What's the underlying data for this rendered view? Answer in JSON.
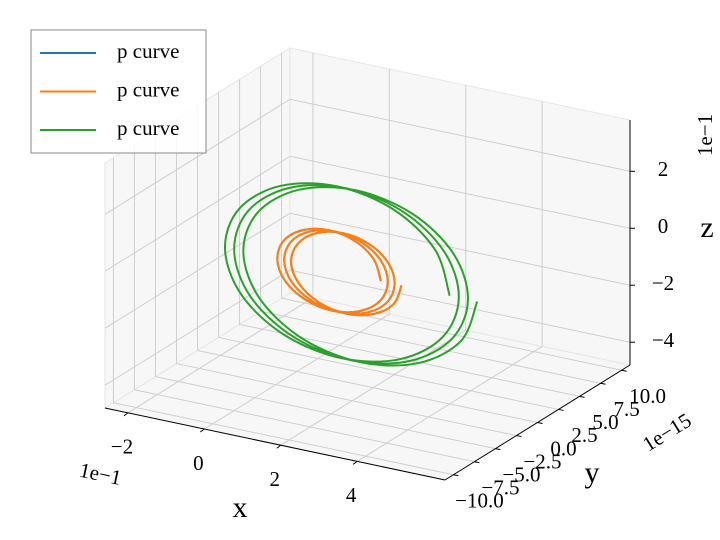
{
  "chart_data": {
    "type": "line3d",
    "series": [
      {
        "name": "p curve",
        "color": "#1f77b4",
        "x": [
          0.22,
          0.202,
          0.153,
          0.0845,
          0.016,
          -0.034,
          -0.051,
          -0.031,
          0.022,
          0.0935,
          0.165,
          0.218,
          0.238,
          0.221,
          0.171,
          0.1025,
          0.034,
          -0.016,
          -0.033,
          -0.013,
          0.04,
          0.1115,
          0.183,
          0.236,
          0.256,
          0.239,
          0.189,
          0.1205,
          0.052,
          0.003,
          -0.015,
          0.006,
          0.058,
          0.1295,
          0.201,
          0.254,
          0.274
        ],
        "y": [
          0,
          0,
          0,
          0,
          0,
          0,
          0,
          0,
          0,
          0,
          0,
          0,
          0,
          0,
          0,
          0,
          0,
          0,
          0,
          0,
          0,
          0,
          0,
          0,
          0,
          0,
          0,
          0,
          0,
          0,
          0,
          0,
          0,
          0,
          0,
          0,
          0
        ],
        "z": [
          -0.1,
          -0.03,
          0.021,
          0.04,
          0.021,
          -0.03,
          -0.1,
          -0.17,
          -0.221,
          -0.24,
          -0.221,
          -0.17,
          -0.1,
          -0.03,
          0.021,
          0.04,
          0.021,
          -0.03,
          -0.1,
          -0.17,
          -0.221,
          -0.24,
          -0.221,
          -0.17,
          -0.1,
          -0.03,
          0.021,
          0.04,
          0.021,
          -0.03,
          -0.1,
          -0.17,
          -0.221,
          -0.24,
          -0.221,
          -0.17,
          -0.1
        ]
      },
      {
        "name": "p curve",
        "color": "#ff7f0e",
        "x": [
          0.22,
          0.202,
          0.153,
          0.0845,
          0.016,
          -0.034,
          -0.051,
          -0.031,
          0.022,
          0.0935,
          0.165,
          0.218,
          0.238,
          0.221,
          0.171,
          0.1025,
          0.034,
          -0.016,
          -0.033,
          -0.013,
          0.04,
          0.1115,
          0.183,
          0.236,
          0.256,
          0.239,
          0.189,
          0.1205,
          0.052,
          0.003,
          -0.015,
          0.006,
          0.058,
          0.1295,
          0.201,
          0.254,
          0.274
        ],
        "y": [
          0,
          0,
          0,
          0,
          0,
          0,
          0,
          0,
          0,
          0,
          0,
          0,
          0,
          0,
          0,
          0,
          0,
          0,
          0,
          0,
          0,
          0,
          0,
          0,
          0,
          0,
          0,
          0,
          0,
          0,
          0,
          0,
          0,
          0,
          0,
          0,
          0
        ],
        "z": [
          -0.1,
          -0.03,
          0.021,
          0.04,
          0.021,
          -0.03,
          -0.1,
          -0.17,
          -0.221,
          -0.24,
          -0.221,
          -0.17,
          -0.1,
          -0.03,
          0.021,
          0.04,
          0.021,
          -0.03,
          -0.1,
          -0.17,
          -0.221,
          -0.24,
          -0.221,
          -0.17,
          -0.1,
          -0.03,
          0.021,
          0.04,
          0.021,
          -0.03,
          -0.1,
          -0.17,
          -0.221,
          -0.24,
          -0.221,
          -0.17,
          -0.1
        ]
      },
      {
        "name": "p curve",
        "color": "#2ca02c",
        "x": [
          0.4,
          0.362,
          0.254,
          0.106,
          -0.042,
          -0.15,
          -0.188,
          -0.146,
          -0.034,
          0.118,
          0.27,
          0.382,
          0.424,
          0.386,
          0.278,
          0.13,
          -0.018,
          -0.126,
          -0.164,
          -0.122,
          -0.01,
          0.142,
          0.294,
          0.406,
          0.448,
          0.41,
          0.302,
          0.154,
          0.006,
          -0.102,
          -0.14,
          -0.098,
          0.014,
          0.166,
          0.318,
          0.43,
          0.472
        ],
        "y": [
          0,
          0,
          0,
          0,
          0,
          0,
          0,
          0,
          0,
          0,
          0,
          0,
          0,
          0,
          0,
          0,
          0,
          0,
          0,
          0,
          0,
          0,
          0,
          0,
          0,
          0,
          0,
          0,
          0,
          0,
          0,
          0,
          0,
          0,
          0,
          0,
          0
        ],
        "z": [
          -0.1,
          0.05,
          0.16,
          0.2,
          0.16,
          0.05,
          -0.1,
          -0.25,
          -0.36,
          -0.4,
          -0.36,
          -0.25,
          -0.1,
          0.05,
          0.16,
          0.2,
          0.16,
          0.05,
          -0.1,
          -0.25,
          -0.36,
          -0.4,
          -0.36,
          -0.25,
          -0.1,
          0.05,
          0.16,
          0.2,
          0.16,
          0.05,
          -0.1,
          -0.25,
          -0.36,
          -0.4,
          -0.36,
          -0.25,
          -0.1
        ]
      }
    ],
    "xlim": [
      -0.26,
      0.63
    ],
    "ylim": [
      -1.1e-14,
      1.1e-14
    ],
    "zlim": [
      -0.48,
      0.38
    ],
    "xticks": [
      {
        "value": -0.2,
        "label": "−2"
      },
      0,
      {
        "value": 0.2,
        "label": "2"
      },
      {
        "value": 0.4,
        "label": "4"
      }
    ],
    "yticks": [
      {
        "value": -1e-14,
        "label": "−10.0"
      },
      {
        "value": -7.5e-15,
        "label": "−7.5"
      },
      {
        "value": -5e-15,
        "label": "−5.0"
      },
      {
        "value": -2.5e-15,
        "label": "−2.5"
      },
      {
        "value": 0,
        "label": "0.0"
      },
      {
        "value": 2.5e-15,
        "label": "2.5"
      },
      {
        "value": 5e-15,
        "label": "5.0"
      },
      {
        "value": 7.5e-15,
        "label": "7.5"
      },
      {
        "value": 1e-14,
        "label": "10.0"
      }
    ],
    "zticks": [
      {
        "value": -0.4,
        "label": "−4"
      },
      {
        "value": -0.2,
        "label": "−2"
      },
      0,
      {
        "value": 0.2,
        "label": "2"
      }
    ],
    "x_label": "x",
    "y_label": "y",
    "z_label": "z",
    "x_offset_text": "1e−1",
    "y_offset_text": "1e−15",
    "z_offset_text": "1e−1",
    "grid": true,
    "legend": "upper left"
  }
}
